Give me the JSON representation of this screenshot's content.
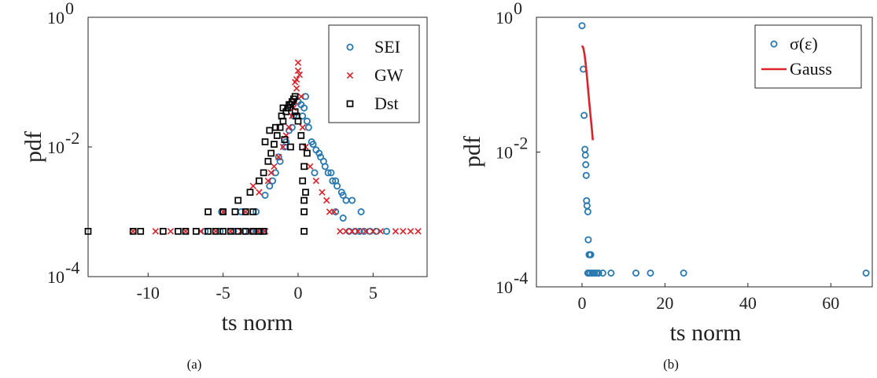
{
  "captions": {
    "a": "(a)",
    "b": "(b)"
  },
  "colors": {
    "sei": "#2878b0",
    "gw": "#d8232a",
    "dst": "#000000",
    "gauss": "#d8232a"
  },
  "chart_data": [
    {
      "type": "scatter",
      "panel": "a",
      "xlabel": "ts norm",
      "ylabel": "pdf",
      "xlim": [
        -14,
        8.6
      ],
      "ylim_log10": [
        -4,
        0
      ],
      "y_scale": "log",
      "x_ticks": [
        -10,
        -5,
        0,
        5
      ],
      "x_tick_labels": [
        "-10",
        "-5",
        "0",
        "5"
      ],
      "y_ticks_log10": [
        0,
        -2,
        -4
      ],
      "y_tick_labels": [
        "10",
        "10",
        "10"
      ],
      "y_tick_exponents": [
        "0",
        "-2",
        "-4"
      ],
      "legend_position": "top-right",
      "grid": false,
      "series": [
        {
          "name": "SEI",
          "marker": "circle",
          "color": "#2878b0",
          "x": [
            -6.2,
            -5.2,
            -4.3,
            -3.6,
            -3.1,
            -2.8,
            -2.5,
            -2.3,
            -5.1,
            -3.8,
            -2.8,
            -2.2,
            -1.9,
            -1.7,
            -1.5,
            -1.2,
            -0.9,
            -0.6,
            -0.3,
            0.0,
            0.2,
            0.4,
            0.6,
            0.9,
            1.2,
            1.5,
            1.8,
            2.0,
            2.3,
            2.6,
            2.9,
            3.2,
            0.5,
            0.7,
            1.0,
            1.4,
            1.7,
            2.2,
            2.5,
            3.0,
            3.6,
            4.2,
            -1.3,
            -0.8,
            -0.4,
            0.3,
            1.1,
            2.5,
            3.0,
            3.4,
            3.8,
            4.1,
            4.4,
            4.8,
            5.2,
            5.9
          ],
          "y": [
            0.0005,
            0.0005,
            0.0005,
            0.0005,
            0.0005,
            0.0005,
            0.0005,
            0.0005,
            0.001,
            0.001,
            0.001,
            0.0018,
            0.0025,
            0.003,
            0.004,
            0.006,
            0.01,
            0.018,
            0.03,
            0.05,
            0.045,
            0.04,
            0.025,
            0.012,
            0.009,
            0.007,
            0.005,
            0.004,
            0.003,
            0.0025,
            0.002,
            0.0015,
            0.06,
            0.02,
            0.011,
            0.008,
            0.006,
            0.004,
            0.003,
            0.0018,
            0.0015,
            0.001,
            0.007,
            0.012,
            0.02,
            0.03,
            0.004,
            0.001,
            0.0008,
            0.0005,
            0.0005,
            0.0005,
            0.0005,
            0.0005,
            0.0005,
            0.0005
          ]
        },
        {
          "name": "GW",
          "marker": "x",
          "color": "#d8232a",
          "x": [
            -11.0,
            -9.5,
            -8.5,
            -7.5,
            -6.5,
            -5.5,
            -4.5,
            -3.8,
            -3.2,
            -2.7,
            -2.2,
            -5.0,
            -3.5,
            -2.6,
            -2.0,
            -1.6,
            -1.3,
            -1.0,
            -0.8,
            -0.6,
            -0.4,
            -0.3,
            -0.2,
            -0.1,
            0.0,
            0.1,
            0.2,
            -0.2,
            -0.1,
            0.0,
            0.3,
            0.5,
            0.8,
            1.2,
            1.6,
            1.9,
            2.1,
            2.4,
            2.8,
            3.2,
            3.6,
            4.0,
            4.5,
            5.0,
            5.5,
            6.5,
            7.0,
            7.5,
            8.0,
            -3.0,
            -1.8
          ],
          "y": [
            0.0005,
            0.0005,
            0.0005,
            0.0005,
            0.0005,
            0.0005,
            0.0005,
            0.0005,
            0.0005,
            0.0005,
            0.0005,
            0.001,
            0.001,
            0.002,
            0.003,
            0.005,
            0.007,
            0.01,
            0.015,
            0.02,
            0.03,
            0.04,
            0.05,
            0.08,
            0.2,
            0.13,
            0.06,
            0.1,
            0.11,
            0.15,
            0.02,
            0.01,
            0.005,
            0.003,
            0.002,
            0.0015,
            0.001,
            0.001,
            0.0005,
            0.0005,
            0.0005,
            0.0005,
            0.0005,
            0.0005,
            0.0005,
            0.0005,
            0.0005,
            0.0005,
            0.0005,
            0.0025,
            0.004
          ]
        },
        {
          "name": "Dst",
          "marker": "square",
          "color": "#000000",
          "x": [
            -14.0,
            -11.0,
            -10.5,
            -9.0,
            -8.0,
            -7.5,
            -6.8,
            -6.0,
            -5.5,
            -5.0,
            -4.5,
            -4.0,
            -3.5,
            -3.0,
            -2.6,
            -2.3,
            -6.0,
            -5.0,
            -4.2,
            -3.5,
            -3.0,
            -4.0,
            -3.2,
            -2.6,
            -2.3,
            -2.0,
            -1.8,
            -1.6,
            -1.4,
            -1.2,
            -1.0,
            -0.8,
            -0.6,
            -0.4,
            -0.3,
            -0.2,
            -1.5,
            -1.1,
            -0.7,
            -2.2,
            -1.9,
            -0.2,
            -0.1,
            0.0,
            0.2,
            0.3,
            0.4,
            0.3,
            0.5,
            -0.5,
            -1.0,
            0.4,
            0.4,
            0.4,
            0.6,
            -0.9,
            -0.5
          ],
          "y": [
            0.0005,
            0.0005,
            0.0005,
            0.0005,
            0.0005,
            0.0005,
            0.0005,
            0.0005,
            0.0005,
            0.0005,
            0.0005,
            0.0005,
            0.0005,
            0.0005,
            0.0005,
            0.0005,
            0.001,
            0.001,
            0.001,
            0.001,
            0.001,
            0.0015,
            0.002,
            0.003,
            0.004,
            0.006,
            0.008,
            0.011,
            0.015,
            0.02,
            0.025,
            0.035,
            0.045,
            0.05,
            0.055,
            0.06,
            0.02,
            0.03,
            0.04,
            0.012,
            0.018,
            0.035,
            0.03,
            0.025,
            0.015,
            0.01,
            0.005,
            0.003,
            0.002,
            0.045,
            0.04,
            0.001,
            0.0005,
            0.0015,
            0.008,
            0.013,
            0.01
          ]
        }
      ]
    },
    {
      "type": "scatter",
      "panel": "b",
      "xlabel": "ts norm",
      "ylabel": "pdf",
      "xlim": [
        -11,
        70
      ],
      "ylim_log10": [
        -4,
        0
      ],
      "y_scale": "log",
      "x_ticks": [
        0,
        20,
        40,
        60
      ],
      "x_tick_labels": [
        "0",
        "20",
        "40",
        "60"
      ],
      "y_ticks_log10": [
        0,
        -2,
        -4
      ],
      "y_tick_labels": [
        "10",
        "10",
        "10"
      ],
      "y_tick_exponents": [
        "0",
        "-2",
        "-4"
      ],
      "legend_position": "top-right",
      "grid": false,
      "series": [
        {
          "name": "σ(ε)",
          "marker": "circle",
          "color": "#2878b0",
          "x": [
            0.0,
            0.3,
            0.5,
            0.7,
            0.8,
            0.9,
            1.0,
            1.1,
            1.2,
            1.4,
            1.5,
            1.7,
            1.9,
            2.1,
            1.6,
            1.4,
            2.0,
            2.5,
            3.0,
            3.5,
            4.0,
            5.0,
            7.0,
            13.0,
            16.5,
            24.5,
            68.5
          ],
          "y": [
            0.75,
            0.17,
            0.035,
            0.011,
            0.009,
            0.0065,
            0.0045,
            0.0019,
            0.0016,
            0.0013,
            0.0005,
            0.0003,
            0.0003,
            0.0003,
            0.00016,
            0.00016,
            0.00016,
            0.00016,
            0.00016,
            0.00016,
            0.00016,
            0.00016,
            0.00016,
            0.00016,
            0.00016,
            0.00016,
            0.00016
          ]
        },
        {
          "name": "Gauss",
          "marker": "line",
          "color": "#d8232a",
          "x": [
            0.0,
            0.3,
            0.6,
            0.9,
            1.2,
            1.5,
            1.8,
            2.1,
            2.4,
            2.6
          ],
          "y": [
            0.38,
            0.35,
            0.28,
            0.2,
            0.13,
            0.08,
            0.05,
            0.032,
            0.021,
            0.015
          ]
        }
      ]
    }
  ]
}
